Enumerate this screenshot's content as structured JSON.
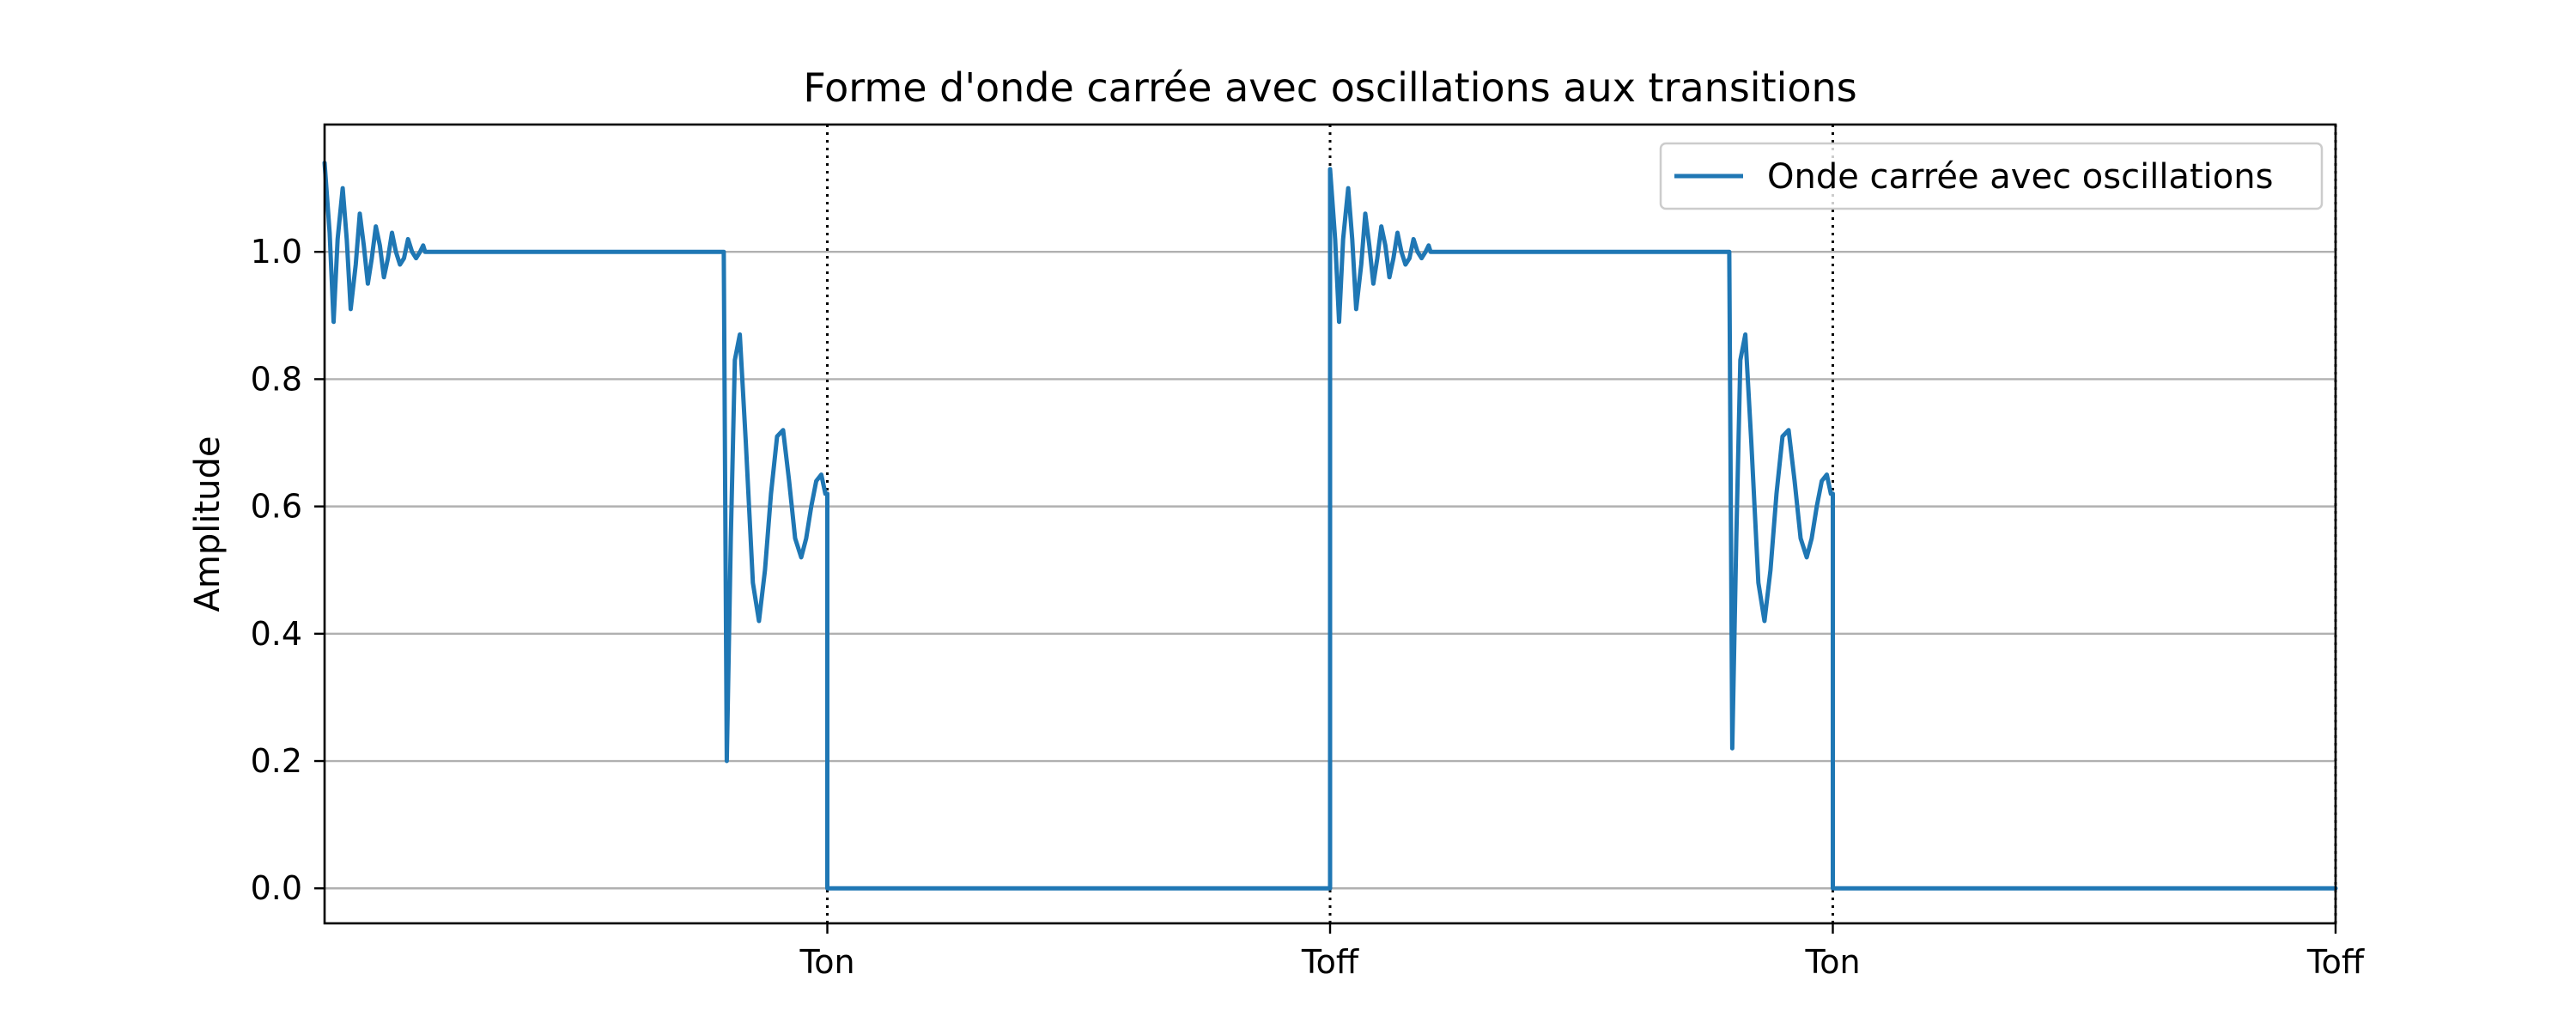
{
  "chart_data": {
    "type": "line",
    "title": "Forme d'onde carrée avec oscillations aux transitions",
    "xlabel": "",
    "ylabel": "Amplitude",
    "xlim": [
      0,
      2
    ],
    "ylim": [
      -0.055,
      1.2
    ],
    "yticks": [
      0.0,
      0.2,
      0.4,
      0.6,
      0.8,
      1.0
    ],
    "ytick_labels": [
      "0.0",
      "0.2",
      "0.4",
      "0.6",
      "0.8",
      "1.0"
    ],
    "xticks": [
      0.5,
      1.0,
      1.5,
      2.0
    ],
    "xtick_labels": [
      "Ton",
      "Toff",
      "Ton",
      "Toff"
    ],
    "vlines": [
      0.5,
      1.0,
      1.5,
      2.0
    ],
    "grid": "horizontal",
    "legend_position": "top-right",
    "colors": {
      "line": "#1f77b4",
      "grid": "#b0b0b0",
      "vline": "#000000"
    },
    "series": [
      {
        "name": "Onde carrée avec oscillations",
        "x": [
          0.0,
          0.005,
          0.009,
          0.013,
          0.018,
          0.022,
          0.026,
          0.031,
          0.035,
          0.039,
          0.043,
          0.047,
          0.051,
          0.055,
          0.059,
          0.063,
          0.067,
          0.071,
          0.075,
          0.079,
          0.083,
          0.087,
          0.091,
          0.095,
          0.098,
          0.1,
          0.396,
          0.397,
          0.4,
          0.404,
          0.408,
          0.413,
          0.419,
          0.426,
          0.432,
          0.438,
          0.444,
          0.45,
          0.456,
          0.462,
          0.468,
          0.474,
          0.479,
          0.484,
          0.489,
          0.494,
          0.498,
          0.5,
          0.5,
          0.501,
          0.998,
          0.999,
          1.0,
          1.0,
          1.005,
          1.009,
          1.013,
          1.018,
          1.022,
          1.026,
          1.031,
          1.035,
          1.039,
          1.043,
          1.047,
          1.051,
          1.055,
          1.059,
          1.063,
          1.067,
          1.071,
          1.075,
          1.079,
          1.083,
          1.087,
          1.091,
          1.095,
          1.098,
          1.1,
          1.396,
          1.397,
          1.4,
          1.404,
          1.408,
          1.413,
          1.419,
          1.426,
          1.432,
          1.438,
          1.444,
          1.45,
          1.456,
          1.462,
          1.468,
          1.474,
          1.479,
          1.484,
          1.489,
          1.494,
          1.498,
          1.5,
          1.5,
          1.501,
          1.998,
          1.999,
          2.0
        ],
        "values": [
          1.14,
          1.03,
          0.89,
          1.02,
          1.1,
          1.02,
          0.91,
          0.98,
          1.06,
          1.01,
          0.95,
          0.99,
          1.04,
          1.01,
          0.96,
          0.99,
          1.03,
          1.0,
          0.98,
          0.99,
          1.02,
          1.0,
          0.99,
          1.0,
          1.01,
          1.0,
          1.0,
          1.0,
          0.2,
          0.55,
          0.83,
          0.87,
          0.7,
          0.48,
          0.42,
          0.5,
          0.62,
          0.71,
          0.72,
          0.64,
          0.55,
          0.52,
          0.55,
          0.6,
          0.64,
          0.65,
          0.62,
          0.62,
          0.0,
          0.0,
          0.0,
          0.0,
          0.0,
          1.13,
          1.02,
          0.89,
          1.02,
          1.1,
          1.02,
          0.91,
          0.98,
          1.06,
          1.01,
          0.95,
          0.99,
          1.04,
          1.01,
          0.96,
          0.99,
          1.03,
          1.0,
          0.98,
          0.99,
          1.02,
          1.0,
          0.99,
          1.0,
          1.01,
          1.0,
          1.0,
          1.0,
          0.22,
          0.55,
          0.83,
          0.87,
          0.7,
          0.48,
          0.42,
          0.5,
          0.62,
          0.71,
          0.72,
          0.64,
          0.55,
          0.52,
          0.55,
          0.6,
          0.64,
          0.65,
          0.62,
          0.62,
          0.0,
          0.0,
          0.0,
          0.0,
          0.0
        ]
      }
    ]
  }
}
